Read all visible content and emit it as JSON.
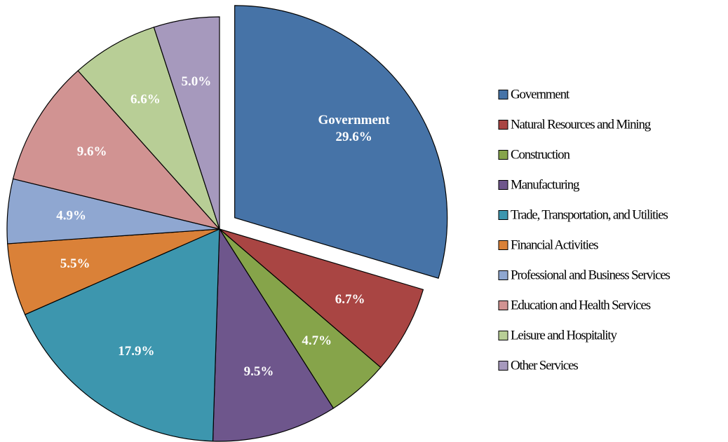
{
  "chart_data": {
    "type": "pie",
    "title": "",
    "slices": [
      {
        "name": "Government",
        "value": 29.6,
        "label": "29.6%",
        "category_label": "Government",
        "color": "#4673A7",
        "exploded": true
      },
      {
        "name": "Natural Resources and Mining",
        "value": 6.7,
        "label": "6.7%",
        "color": "#A94543"
      },
      {
        "name": "Construction",
        "value": 4.7,
        "label": "4.7%",
        "color": "#86A44A"
      },
      {
        "name": "Manufacturing",
        "value": 9.5,
        "label": "9.5%",
        "color": "#6E568C"
      },
      {
        "name": "Trade, Transportation, and Utilities",
        "value": 17.9,
        "label": "17.9%",
        "color": "#3D96AE"
      },
      {
        "name": "Financial Activities",
        "value": 5.5,
        "label": "5.5%",
        "color": "#DA8138"
      },
      {
        "name": "Professional and Business Services",
        "value": 4.9,
        "label": "4.9%",
        "color": "#8FA7D1"
      },
      {
        "name": "Education and Health Services",
        "value": 9.6,
        "label": "9.6%",
        "color": "#D19392"
      },
      {
        "name": "Leisure and Hospitality",
        "value": 6.6,
        "label": "6.6%",
        "color": "#B8CE96"
      },
      {
        "name": "Other Services",
        "value": 5.0,
        "label": "5.0%",
        "color": "#A699BD"
      }
    ],
    "legend": {
      "position": "right"
    }
  }
}
